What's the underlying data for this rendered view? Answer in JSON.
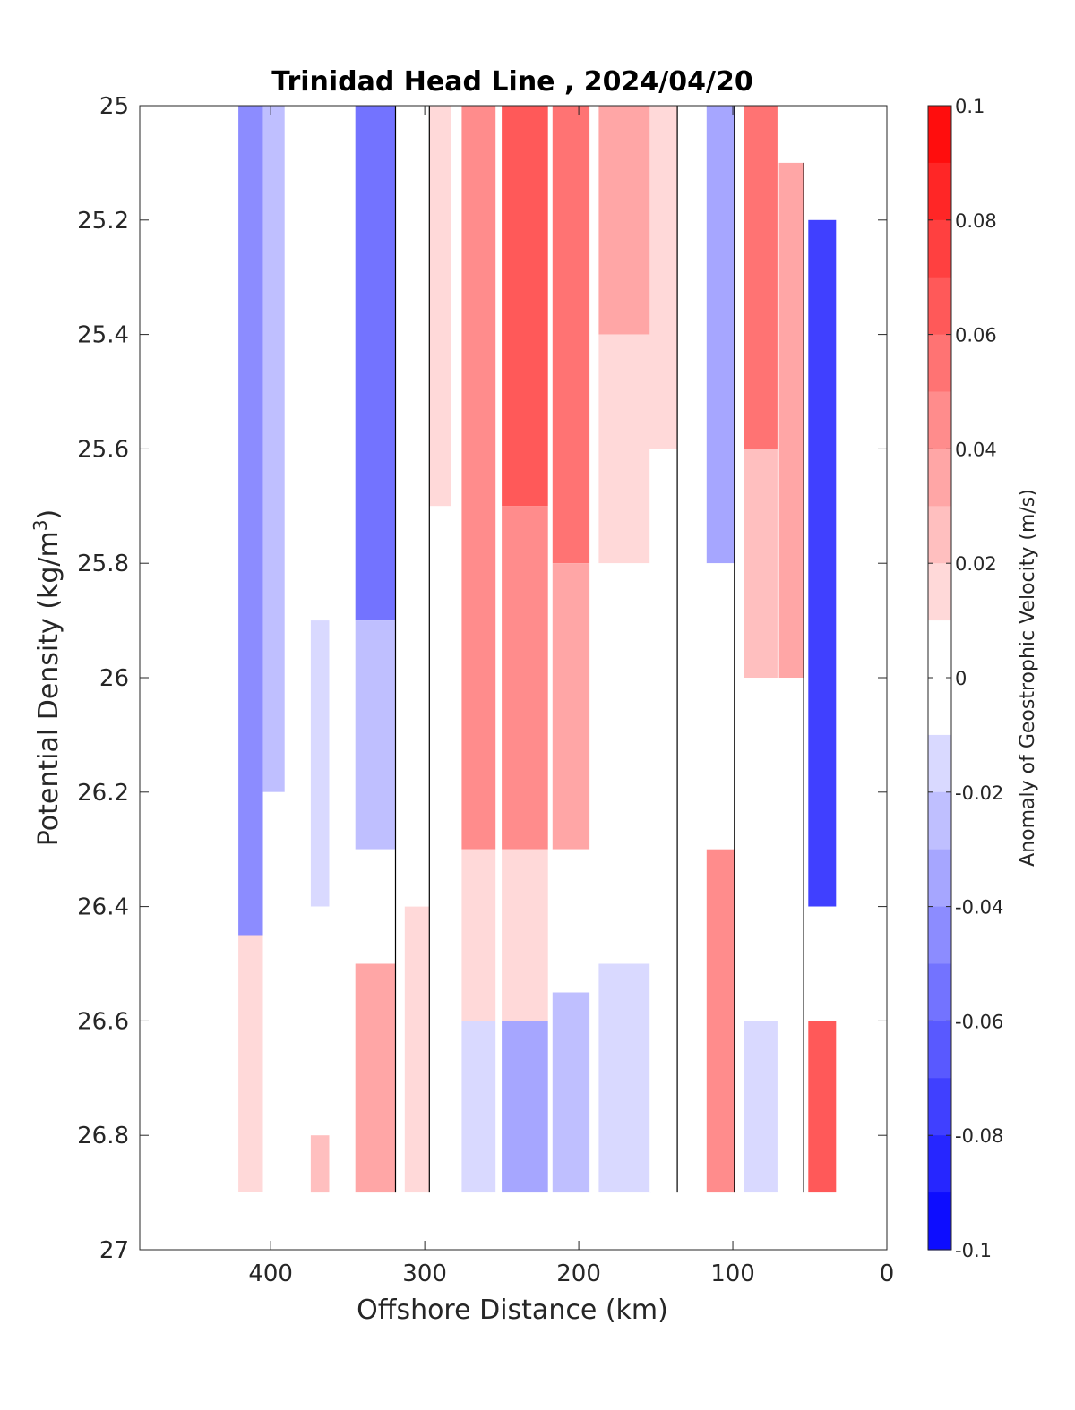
{
  "chart_data": {
    "type": "heatmap",
    "title": "Trinidad Head Line , 2024/04/20",
    "xlabel": "Offshore Distance (km)",
    "ylabel_main": "Potential Density (kg/m",
    "ylabel_sup": "3",
    "ylabel_close": ")",
    "colorbar_label": "Anomaly of Geostrophic Velocity (m/s)",
    "xlim": [
      485,
      0
    ],
    "ylim": [
      25,
      27
    ],
    "y_reversed": true,
    "x_reversed": true,
    "x_ticks": [
      400,
      300,
      200,
      100,
      0
    ],
    "x_tick_labels": [
      "400",
      "300",
      "200",
      "100",
      "0"
    ],
    "y_ticks": [
      25,
      25.2,
      25.4,
      25.6,
      25.8,
      26,
      26.2,
      26.4,
      26.6,
      26.8,
      27
    ],
    "y_tick_labels": [
      "25",
      "25.2",
      "25.4",
      "25.6",
      "25.8",
      "26",
      "26.2",
      "26.4",
      "26.6",
      "26.8",
      "27"
    ],
    "colorbar": {
      "range": [
        -0.1,
        0.1
      ],
      "levels": 20,
      "ticks": [
        0.1,
        0.08,
        0.06,
        0.04,
        0.02,
        0,
        -0.02,
        -0.04,
        -0.06,
        -0.08,
        -0.1
      ],
      "tick_labels": [
        "0.1",
        "0.08",
        "0.06",
        "0.04",
        "0.02",
        "0",
        "-0.02",
        "-0.04",
        "-0.06",
        "-0.08",
        "-0.1"
      ],
      "negative_color": "#0000ff",
      "positive_color": "#ff0000",
      "zero_color": "#ffffff"
    },
    "columns": [
      {
        "x": 413,
        "w": 16,
        "vals": [
          [
            25,
            26.45,
            -0.045
          ],
          [
            26.45,
            26.9,
            0.015
          ]
        ]
      },
      {
        "x": 398,
        "w": 14,
        "vals": [
          [
            25,
            26.2,
            -0.03
          ],
          [
            26.2,
            26.9,
            0.005
          ]
        ]
      },
      {
        "x": 368,
        "w": 12,
        "vals": [
          [
            25,
            25.4,
            -0.01
          ],
          [
            25.4,
            25.9,
            0
          ],
          [
            25.9,
            26.4,
            -0.015
          ],
          [
            26.4,
            26.8,
            0
          ],
          [
            26.8,
            26.9,
            0.02
          ]
        ]
      },
      {
        "x": 332,
        "w": 26,
        "vals": [
          [
            25,
            25.9,
            -0.06
          ],
          [
            25.9,
            26.3,
            -0.025
          ],
          [
            26.3,
            26.5,
            0
          ],
          [
            26.5,
            26.9,
            0.035
          ]
        ]
      },
      {
        "x": 305,
        "w": 16,
        "vals": [
          [
            25,
            26.4,
            0
          ],
          [
            26.4,
            26.9,
            0.01
          ]
        ]
      },
      {
        "x": 290,
        "w": 14,
        "vals": [
          [
            25,
            25.7,
            0.015
          ],
          [
            25.7,
            26.9,
            0
          ]
        ]
      },
      {
        "x": 265,
        "w": 22,
        "vals": [
          [
            25,
            26.3,
            0.04
          ],
          [
            26.3,
            26.6,
            0.015
          ],
          [
            26.6,
            26.9,
            -0.02
          ]
        ]
      },
      {
        "x": 235,
        "w": 30,
        "vals": [
          [
            25,
            25.7,
            0.065
          ],
          [
            25.7,
            26.3,
            0.045
          ],
          [
            26.3,
            26.6,
            0.015
          ],
          [
            26.6,
            26.9,
            -0.04
          ]
        ]
      },
      {
        "x": 205,
        "w": 24,
        "vals": [
          [
            25,
            25.8,
            0.05
          ],
          [
            25.8,
            26.3,
            0.03
          ],
          [
            26.3,
            26.55,
            0.005
          ],
          [
            26.55,
            26.9,
            -0.025
          ]
        ]
      },
      {
        "x": 170,
        "w": 34,
        "vals": [
          [
            25,
            25.4,
            0.035
          ],
          [
            25.4,
            25.8,
            0.015
          ],
          [
            25.8,
            26.5,
            0
          ],
          [
            26.5,
            26.9,
            -0.015
          ]
        ]
      },
      {
        "x": 145,
        "w": 18,
        "vals": [
          [
            25,
            25.6,
            0.015
          ],
          [
            25.6,
            26.9,
            0
          ]
        ]
      },
      {
        "x": 108,
        "w": 18,
        "vals": [
          [
            25,
            25.8,
            -0.04
          ],
          [
            25.8,
            26.3,
            0
          ],
          [
            26.3,
            26.9,
            0.04
          ]
        ]
      },
      {
        "x": 82,
        "w": 22,
        "vals": [
          [
            25,
            25.6,
            0.05
          ],
          [
            25.6,
            26.0,
            0.02
          ],
          [
            26.0,
            26.6,
            0
          ],
          [
            26.6,
            26.9,
            -0.015
          ]
        ]
      },
      {
        "x": 62,
        "w": 16,
        "vals": [
          [
            25.1,
            26.0,
            0.035
          ],
          [
            26.0,
            26.6,
            0
          ],
          [
            26.6,
            26.9,
            -0.01
          ]
        ]
      },
      {
        "x": 42,
        "w": 18,
        "vals": [
          [
            25.2,
            26.4,
            -0.075
          ],
          [
            26.4,
            26.6,
            0
          ],
          [
            26.6,
            26.9,
            0.065
          ]
        ]
      }
    ]
  }
}
